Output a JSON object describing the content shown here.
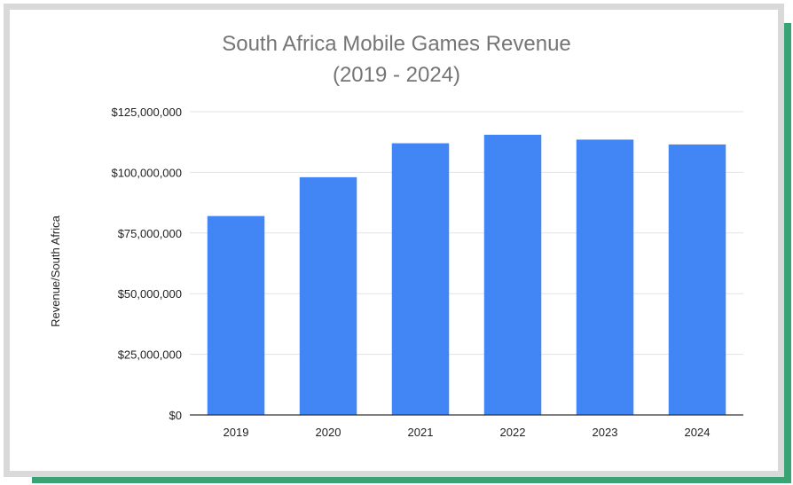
{
  "chart_data": {
    "type": "bar",
    "title": "South Africa Mobile Games Revenue",
    "subtitle": "(2019 - 2024)",
    "xlabel": "",
    "ylabel": "Revenue/South Africa",
    "categories": [
      "2019",
      "2020",
      "2021",
      "2022",
      "2023",
      "2024"
    ],
    "values": [
      82000000,
      98000000,
      112000000,
      115500000,
      113500000,
      111500000
    ],
    "ylim": [
      0,
      125000000
    ],
    "yticks": [
      0,
      25000000,
      50000000,
      75000000,
      100000000,
      125000000
    ],
    "ytick_labels": [
      "$0",
      "$25,000,000",
      "$50,000,000",
      "$75,000,000",
      "$100,000,000",
      "$125,000,000"
    ],
    "grid": true,
    "bar_color": "#4285f4",
    "frame_color": "#d9d9d9",
    "accent_color": "#3aa374"
  }
}
